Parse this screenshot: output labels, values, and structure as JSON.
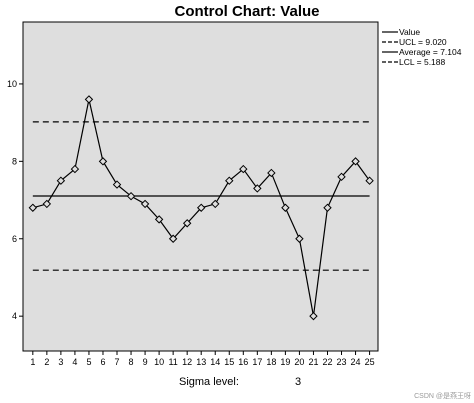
{
  "chart_data": {
    "type": "line",
    "title": "Control Chart: Value",
    "x": [
      1,
      2,
      3,
      4,
      5,
      6,
      7,
      8,
      9,
      10,
      11,
      12,
      13,
      14,
      15,
      16,
      17,
      18,
      19,
      20,
      21,
      22,
      23,
      24,
      25
    ],
    "series": [
      {
        "name": "Value",
        "values": [
          6.8,
          6.9,
          7.5,
          7.8,
          9.6,
          8.0,
          7.4,
          7.1,
          6.9,
          6.5,
          6.0,
          6.4,
          6.8,
          6.9,
          7.5,
          7.8,
          7.3,
          7.7,
          6.8,
          6.0,
          4.0,
          6.8,
          7.6,
          8.0,
          7.5
        ]
      }
    ],
    "control_lines": [
      {
        "name": "UCL",
        "value": 9.02,
        "legend_label": "UCL = 9.020",
        "style": "dashed"
      },
      {
        "name": "Average",
        "value": 7.104,
        "legend_label": "Average = 7.104",
        "style": "solid"
      },
      {
        "name": "LCL",
        "value": 5.188,
        "legend_label": "LCL = 5.188",
        "style": "dashed"
      }
    ],
    "legend": [
      "Value",
      "UCL = 9.020",
      "Average = 7.104",
      "LCL = 5.188"
    ],
    "legend_position": "top-right",
    "y_ticks": [
      4,
      6,
      8,
      10
    ],
    "xlim": [
      0.3,
      25.6
    ],
    "ylim": [
      3.1,
      11.6
    ],
    "grid": false,
    "marker": "diamond",
    "colors": {
      "plot_background": "#dedede",
      "line": "#000000"
    }
  },
  "footer": {
    "sigma_label": "Sigma level:",
    "sigma_value": "3"
  },
  "watermark": "CSDN @是燕王呀"
}
